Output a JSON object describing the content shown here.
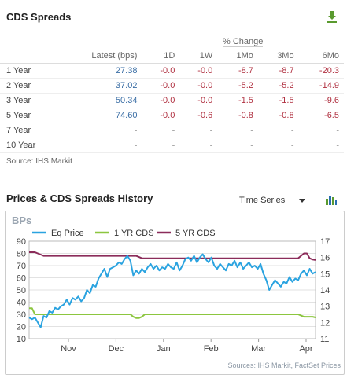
{
  "cds": {
    "title": "CDS Spreads",
    "pct_change_label": "% Change",
    "columns": [
      "Latest (bps)",
      "1D",
      "1W",
      "1Mo",
      "3Mo",
      "6Mo"
    ],
    "rows": [
      {
        "label": "1 Year",
        "latest": "27.38",
        "d1": "-0.0",
        "w1": "-0.0",
        "mo1": "-8.7",
        "mo3": "-8.7",
        "mo6": "-20.3"
      },
      {
        "label": "2 Year",
        "latest": "37.02",
        "d1": "-0.0",
        "w1": "-0.0",
        "mo1": "-5.2",
        "mo3": "-5.2",
        "mo6": "-14.9"
      },
      {
        "label": "3 Year",
        "latest": "50.34",
        "d1": "-0.0",
        "w1": "-0.0",
        "mo1": "-1.5",
        "mo3": "-1.5",
        "mo6": "-9.6"
      },
      {
        "label": "5 Year",
        "latest": "74.60",
        "d1": "-0.0",
        "w1": "-0.6",
        "mo1": "-0.8",
        "mo3": "-0.8",
        "mo6": "-6.5"
      },
      {
        "label": "7 Year",
        "latest": "-",
        "d1": "-",
        "w1": "-",
        "mo1": "-",
        "mo3": "-",
        "mo6": "-"
      },
      {
        "label": "10 Year",
        "latest": "-",
        "d1": "-",
        "w1": "-",
        "mo1": "-",
        "mo3": "-",
        "mo6": "-"
      }
    ],
    "source": "Source: IHS Markit"
  },
  "history": {
    "title": "Prices & CDS Spreads History",
    "view_select": "Time Series",
    "source": "Sources: IHS Markit, FactSet Prices"
  },
  "colors": {
    "eq_price": "#2aa3e0",
    "cds_1yr": "#8cc63f",
    "cds_5yr": "#8b2c5a",
    "download_icon": "#5a9a2f",
    "negative": "#b03040",
    "latest": "#3a6ea5"
  },
  "chart_data": {
    "type": "line",
    "title": "BPs",
    "x_ticks": [
      "Nov",
      "Dec",
      "Jan",
      "Feb",
      "Mar",
      "Apr"
    ],
    "y_left": {
      "ticks": [
        10,
        20,
        30,
        40,
        50,
        60,
        70,
        80,
        90
      ],
      "range": [
        10,
        90
      ]
    },
    "y_right": {
      "ticks": [
        11,
        12,
        13,
        14,
        15,
        16,
        17
      ],
      "range": [
        11,
        17
      ]
    },
    "legend_position": "top-left",
    "series": [
      {
        "name": "Eq Price",
        "axis": "right",
        "values": [
          12.3,
          12.2,
          12.3,
          12.0,
          11.7,
          12.4,
          12.3,
          12.7,
          12.6,
          12.9,
          12.8,
          13.0,
          13.1,
          13.4,
          13.1,
          13.5,
          13.4,
          13.6,
          13.3,
          13.5,
          14.0,
          13.8,
          14.3,
          14.2,
          14.7,
          15.0,
          15.3,
          14.8,
          15.3,
          15.4,
          15.5,
          15.7,
          15.6,
          15.9,
          16.1,
          15.8,
          14.9,
          15.2,
          15.0,
          15.3,
          15.1,
          15.4,
          15.6,
          15.3,
          15.5,
          15.2,
          15.4,
          15.3,
          15.6,
          15.4,
          15.3,
          15.7,
          15.2,
          15.5,
          15.9,
          16.0,
          15.8,
          16.1,
          15.7,
          16.0,
          16.2,
          15.9,
          15.7,
          16.0,
          15.5,
          15.3,
          15.6,
          15.4,
          15.2,
          15.6,
          15.5,
          15.8,
          15.4,
          15.7,
          15.3,
          15.5,
          15.7,
          15.4,
          15.5,
          15.3,
          15.6,
          15.0,
          14.6,
          14.0,
          14.3,
          14.6,
          14.4,
          14.2,
          14.5,
          14.4,
          14.8,
          14.5,
          14.7,
          14.6,
          15.0,
          15.2,
          14.9,
          15.3,
          15.0,
          15.1
        ]
      },
      {
        "name": "1 YR CDS",
        "axis": "left",
        "values": [
          35,
          35,
          30,
          30,
          30,
          30,
          30,
          30,
          30,
          30,
          30,
          30,
          30,
          30,
          30,
          30,
          30,
          30,
          30,
          30,
          30,
          30,
          30,
          30,
          30,
          30,
          30,
          30,
          30,
          30,
          30,
          30,
          30,
          30,
          30,
          30,
          28,
          27,
          27,
          28,
          30,
          30,
          30,
          30,
          30,
          30,
          30,
          30,
          30,
          30,
          30,
          30,
          30,
          30,
          30,
          30,
          30,
          30,
          30,
          30,
          30,
          30,
          30,
          30,
          30,
          30,
          30,
          30,
          30,
          30,
          30,
          30,
          30,
          30,
          30,
          30,
          30,
          30,
          30,
          30,
          30,
          30,
          30,
          30,
          30,
          30,
          30,
          30,
          30,
          30,
          30,
          30,
          30,
          30,
          29,
          28,
          28,
          28,
          28,
          27.4
        ]
      },
      {
        "name": "5 YR CDS",
        "axis": "left",
        "values": [
          81,
          81,
          81,
          80,
          79,
          78,
          78,
          78,
          78,
          78,
          78,
          78,
          78,
          78,
          78,
          78,
          78,
          78,
          78,
          78,
          78,
          78,
          78,
          78,
          78,
          78,
          78,
          78,
          78,
          78,
          78,
          78,
          78,
          78,
          78,
          78,
          78,
          78,
          77,
          76,
          76,
          76,
          76,
          76,
          76,
          76,
          76,
          76,
          76,
          76,
          76,
          76,
          76,
          76,
          76,
          76,
          76,
          76,
          76,
          76,
          76,
          76,
          76,
          76,
          76,
          76,
          76,
          76,
          76,
          76,
          76,
          76,
          76,
          76,
          76,
          76,
          76,
          76,
          76,
          76,
          76,
          76,
          76,
          76,
          76,
          76,
          76,
          76,
          76,
          76,
          76,
          76,
          76,
          76,
          78,
          80,
          80,
          76,
          75,
          74.6
        ]
      }
    ]
  }
}
